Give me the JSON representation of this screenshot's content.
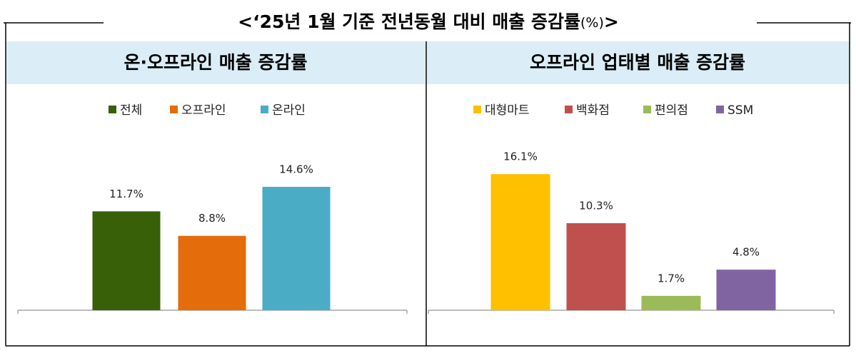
{
  "title": [
    "<‘25년 1월 기준 전년동월 대비 매출 증감률",
    "(%)",
    ">"
  ],
  "chart_data": [
    {
      "type": "bar",
      "title": "온·오프라인 매출 증감률",
      "series": [
        {
          "name": "전체",
          "color": "#376009",
          "values": [
            11.7
          ],
          "value_labels": [
            "11.7%"
          ]
        },
        {
          "name": "오프라인",
          "color": "#e46c0a",
          "values": [
            8.8
          ],
          "value_labels": [
            "8.8%"
          ]
        },
        {
          "name": "온라인",
          "color": "#4bacc6",
          "values": [
            14.6
          ],
          "value_labels": [
            "14.6%"
          ]
        }
      ]
    },
    {
      "type": "bar",
      "title": "오프라인 업태별 매출 증감률",
      "series": [
        {
          "name": "대형마트",
          "color": "#ffc000",
          "values": [
            16.1
          ],
          "value_labels": [
            "16.1%"
          ]
        },
        {
          "name": "백화점",
          "color": "#c0504d",
          "values": [
            10.3
          ],
          "value_labels": [
            "10.3%"
          ]
        },
        {
          "name": "편의점",
          "color": "#9bbb59",
          "values": [
            1.7
          ],
          "value_labels": [
            "1.7%"
          ]
        },
        {
          "name": "SSM",
          "color": "#8064a2",
          "values": [
            4.8
          ],
          "value_labels": [
            "4.8%"
          ]
        }
      ]
    }
  ]
}
